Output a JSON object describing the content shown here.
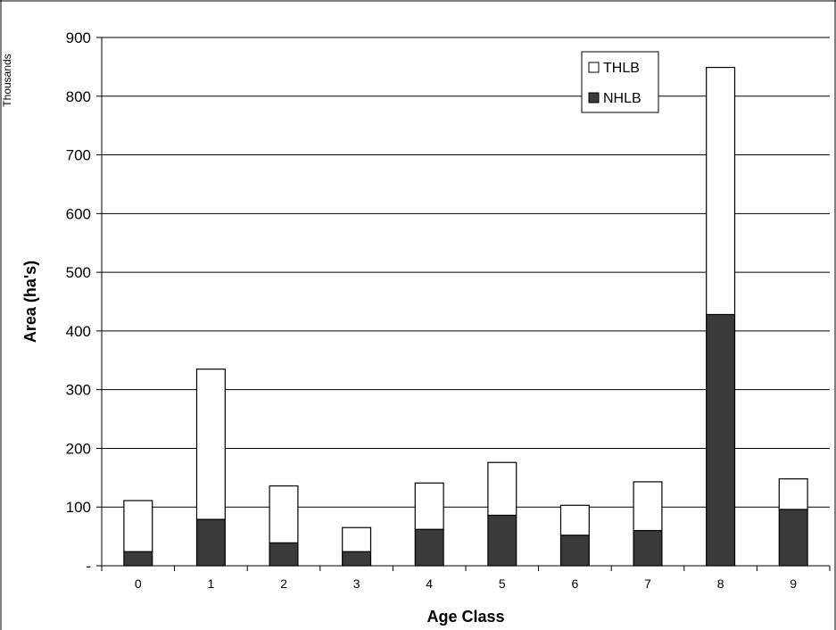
{
  "chart_data": {
    "type": "bar",
    "stacked": true,
    "title": "",
    "xlabel": "Age Class",
    "ylabel": "Area (ha's)",
    "units_label": "Thousands",
    "categories": [
      "0",
      "1",
      "2",
      "3",
      "4",
      "5",
      "6",
      "7",
      "8",
      "9"
    ],
    "series": [
      {
        "name": "NHLB",
        "color": "#3a3a3a",
        "values": [
          24,
          79,
          39,
          24,
          62,
          86,
          52,
          60,
          428,
          96
        ]
      },
      {
        "name": "THLB",
        "color": "#ffffff",
        "values": [
          87,
          256,
          97,
          41,
          79,
          90,
          51,
          83,
          421,
          52
        ]
      }
    ],
    "yticks": [
      0,
      100,
      200,
      300,
      400,
      500,
      600,
      700,
      800,
      900
    ],
    "ytick_labels": [
      "-",
      "100",
      "200",
      "300",
      "400",
      "500",
      "600",
      "700",
      "800",
      "900"
    ],
    "ylim": [
      0,
      900
    ],
    "grid": true,
    "legend": {
      "position": "top-right",
      "order": [
        "THLB",
        "NHLB"
      ]
    }
  }
}
